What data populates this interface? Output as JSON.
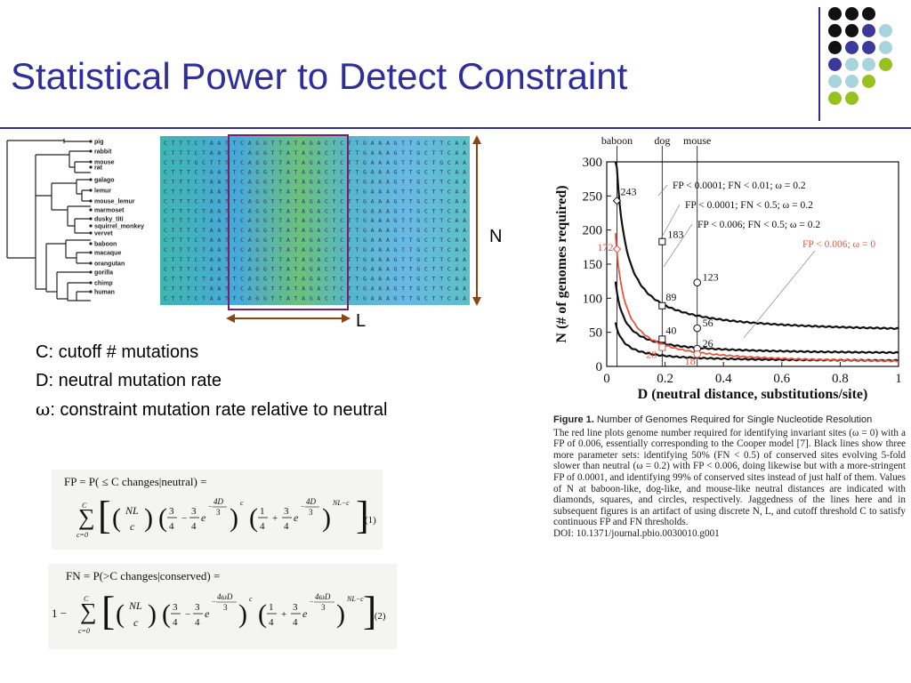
{
  "slide": {
    "title": "Statistical Power to Detect Constraint"
  },
  "decor_dots": {
    "rows": [
      [
        "#111111",
        "#111111",
        "#111111"
      ],
      [
        "#111111",
        "#111111",
        "#3b3a9a",
        "#a8d5dc"
      ],
      [
        "#111111",
        "#3b3a9a",
        "#3b3a9a",
        "#a8d5dc"
      ],
      [
        "#3b3a9a",
        "#a8d5dc",
        "#a8d5dc",
        "#96c11f"
      ],
      [
        "#a8d5dc",
        "#a8d5dc",
        "#96c11f"
      ],
      [
        "#96c11f",
        "#96c11f"
      ]
    ]
  },
  "tree": {
    "species": [
      "pig",
      "rabbit",
      "mouse",
      "rat",
      "galago",
      "lemur",
      "mouse_lemur",
      "marmoset",
      "dusky_titi",
      "squirrel_monkey",
      "vervet",
      "baboon",
      "macaque",
      "orangutan",
      "gorilla",
      "chimp",
      "human"
    ]
  },
  "alignment": {
    "rows": [
      "C T T T C T A A T T C A G G T T A T A G A C T C T T G A A A G T T G C T T C A A",
      "C T T T C T A A T T C A G G T T A T A G A C T C T T G A A A G T T G C T T C A A",
      "C T T T G C T T T T C A G G T T A T A G A C T C T T G A A A G T T G C T G C A A",
      "C T T T C T A A T T C A G G T T A T A G A C T C T T G A A A G T T G C T T C A A",
      "C T T T C T A A T T C A G G T T A T A G A C T C T T G A A A G T T G C T T C A A",
      "C T T T C T A A T T C A G G T T A T A G A C T C T T G A A A G T T G C T T C A A",
      "C T T T C T A A T T C A G G T T A T A G A C T C T T G A A A G T T G C T T C A A",
      "C T T T C T A A T T C A G G T T A T A G A C T C T T G A A A G T T G C T T C A A",
      "C T T T C T A A T T C A G G T T A T A G A C T C T T G A A A G T T G C T T C A A",
      "C T T T C T A A T T C A G G T T A T A G A C T C T T G A A A G T T G C T T C A A",
      "C T T T C T A A T T C A G G T T A T A G A C T C T T G A A A G T T G C T T C A A",
      "C T T T C T A A T T C A G G T T A T A G A C T C T T G A A A G T T G C T T C A A",
      "C T T T C T A A T T C A G G T T A T A G A C T C T T G A A A G T T G C T T C A A",
      "C T T T C T A A T T C A G G T T A T A G A C T C T T G A A A G T T G C T T C A A",
      "C T T T C T A A T T C A G G T T A T A G A C T C T T G A A A G T T G C T T C A A",
      "C T T T C T A A T T C A G G T T A T A G A C T C T T G A A A G T T G C T T C A A",
      "C T T T C T A A T T C A G G T T A T A G A C T C T T G A A A G T T G C T T C A A"
    ],
    "box_color": "#7a1f6e",
    "arrow_color": "#8b4513"
  },
  "dims": {
    "n_label": "N",
    "l_label": "L"
  },
  "definitions": [
    {
      "sym": "C",
      "text": ": cutoff # mutations"
    },
    {
      "sym": "D",
      "text": ": neutral mutation rate"
    },
    {
      "sym": "ω",
      "text": ": constraint mutation rate relative to neutral"
    }
  ],
  "equations": {
    "fp_lhs": "FP = P( ≤ C changes|neutral) =",
    "fp_num": "(1)",
    "fn_lhs": "FN = P(>C changes|conserved) =",
    "fn_num": ".(2)",
    "sum_top": "C",
    "sum_bottom": "c=0",
    "binom_top": "NL",
    "binom_bottom": "c",
    "three": "3",
    "four": "4",
    "one": "1",
    "minus": "−",
    "plus": "+",
    "one_minus": "1 −",
    "e": "e",
    "exp_fp": "4D",
    "exp_fn": "4ωD",
    "pow_c": "c",
    "pow_nlc": "NL−c"
  },
  "chart_data": {
    "type": "line",
    "xlabel": "D (neutral distance, substitutions/site)",
    "ylabel": "N (# of genomes required)",
    "xlim": [
      0,
      1
    ],
    "ylim": [
      0,
      300
    ],
    "xticks": [
      "0",
      "0.2",
      "0.4",
      "0.6",
      "0.8",
      "1"
    ],
    "yticks": [
      "0",
      "50",
      "100",
      "150",
      "200",
      "250",
      "300"
    ],
    "species_markers": [
      {
        "label": "baboon",
        "x": 0.035
      },
      {
        "label": "dog",
        "x": 0.19
      },
      {
        "label": "mouse",
        "x": 0.31
      }
    ],
    "series": [
      {
        "name": "FP < 0.0001; FN < 0.01; ω = 0.2",
        "color": "#111111",
        "k": 8.5,
        "floor": 47,
        "points": [
          {
            "x": 0.035,
            "y": 243,
            "marker": "diamond"
          },
          {
            "x": 0.19,
            "y": 183,
            "marker": "square"
          },
          {
            "x": 0.31,
            "y": 123,
            "marker": "circle"
          }
        ]
      },
      {
        "name": "FP < 0.0001; FN < 0.5; ω = 0.2",
        "color": "#111111",
        "k": 3.2,
        "floor": 17,
        "points": [
          {
            "x": 0.19,
            "y": 89,
            "marker": "square"
          },
          {
            "x": 0.31,
            "y": 56,
            "marker": "circle"
          }
        ]
      },
      {
        "name": "FP < 0.006; FN < 0.5; ω = 0.2",
        "color": "#111111",
        "k": 1.7,
        "floor": 7,
        "points": [
          {
            "x": 0.19,
            "y": 40,
            "marker": "square"
          },
          {
            "x": 0.31,
            "y": 26,
            "marker": "circle"
          }
        ]
      },
      {
        "name": "FP < 0.006; ω = 0",
        "color": "#e8553e",
        "k": 5.8,
        "floor": 2,
        "points": [
          {
            "x": 0.035,
            "y": 172,
            "marker": "diamond"
          },
          {
            "x": 0.19,
            "y": 28,
            "marker": "square"
          },
          {
            "x": 0.31,
            "y": 18,
            "marker": "circle"
          }
        ]
      }
    ],
    "point_labels": [
      "243",
      "183",
      "123",
      "89",
      "56",
      "40",
      "26",
      "172",
      "28",
      "18"
    ]
  },
  "caption": {
    "figure_label": "Figure 1.",
    "figure_title": " Number of Genomes Required for Single Nucleotide Resolution",
    "body": "The red line plots genome number required for identifying invariant sites (ω = 0) with a FP of 0.006, essentially corresponding to the Cooper model [7]. Black lines show three more parameter sets: identifying 50% (FN < 0.5) of conserved sites evolving 5-fold slower than neutral (ω = 0.2) with FP < 0.006, doing likewise but with a more-stringent FP of 0.0001, and identifying 99% of conserved sites instead of just half of them. Values of N at baboon-like, dog-like, and mouse-like neutral distances are indicated with diamonds, squares, and circles, respectively. Jaggedness of the lines here and in subsequent figures is an artifact of using discrete N, L, and cutoff threshold C to satisfy continuous FP and FN thresholds.",
    "doi": "DOI: 10.1371/journal.pbio.0030010.g001"
  }
}
